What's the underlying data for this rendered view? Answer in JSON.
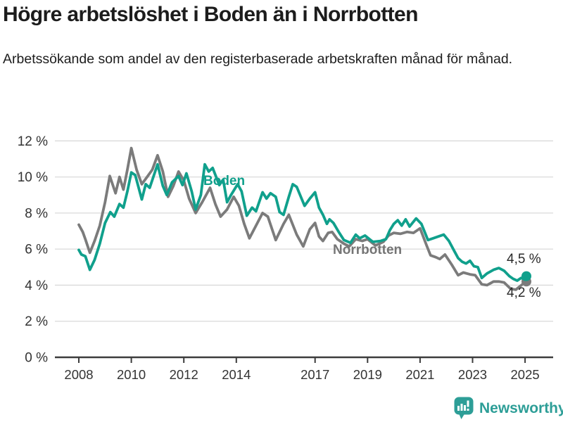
{
  "title": "Högre arbetslöshet i Boden än i Norrbotten",
  "subtitle": "Arbetssökande som andel av den registerbaserade arbetskraften månad för månad.",
  "footer": {
    "brand": "Newsworthy"
  },
  "colors": {
    "accent_teal": "#10a08c",
    "series_gray": "#7b7b7b",
    "logo_teal": "#2d9e97",
    "grid": "#dadada",
    "axis": "#3c3c3c",
    "tick_text": "#333333"
  },
  "chart_data": {
    "type": "line",
    "unit": "%",
    "x_axis": {
      "ticks": [
        2008,
        2010,
        2012,
        2014,
        2017,
        2019,
        2021,
        2023,
        2025
      ],
      "range": [
        2008,
        2025.2
      ]
    },
    "y_axis": {
      "ticks": [
        0,
        2,
        4,
        6,
        8,
        10,
        12
      ],
      "labels": [
        "0 %",
        "2 %",
        "4 %",
        "6 %",
        "8 %",
        "10 %",
        "12 %"
      ],
      "range": [
        0,
        12.5
      ]
    },
    "grid": true,
    "legend_position": "inline-labels",
    "series_labels": {
      "boden": "Boden",
      "norrbotten": "Norrbotten"
    },
    "end_labels": {
      "boden": "4,5 %",
      "norrbotten": "4,2 %"
    },
    "series": [
      {
        "name": "Norrbotten",
        "color": "#7b7b7b",
        "points": [
          [
            2008.0,
            7.35
          ],
          [
            2008.15,
            6.95
          ],
          [
            2008.25,
            6.55
          ],
          [
            2008.42,
            5.8
          ],
          [
            2008.6,
            6.45
          ],
          [
            2008.8,
            7.3
          ],
          [
            2009.0,
            8.6
          ],
          [
            2009.18,
            10.05
          ],
          [
            2009.4,
            9.1
          ],
          [
            2009.55,
            10.0
          ],
          [
            2009.7,
            9.3
          ],
          [
            2009.85,
            10.4
          ],
          [
            2010.0,
            11.6
          ],
          [
            2010.2,
            10.4
          ],
          [
            2010.4,
            9.6
          ],
          [
            2010.6,
            10.0
          ],
          [
            2010.8,
            10.4
          ],
          [
            2011.0,
            11.2
          ],
          [
            2011.2,
            10.3
          ],
          [
            2011.4,
            8.9
          ],
          [
            2011.6,
            9.5
          ],
          [
            2011.8,
            10.3
          ],
          [
            2012.0,
            9.8
          ],
          [
            2012.2,
            8.8
          ],
          [
            2012.45,
            8.0
          ],
          [
            2012.7,
            8.6
          ],
          [
            2013.0,
            9.4
          ],
          [
            2013.2,
            8.5
          ],
          [
            2013.4,
            7.8
          ],
          [
            2013.65,
            8.2
          ],
          [
            2013.9,
            8.9
          ],
          [
            2014.1,
            8.4
          ],
          [
            2014.3,
            7.4
          ],
          [
            2014.5,
            6.6
          ],
          [
            2014.75,
            7.3
          ],
          [
            2015.0,
            8.0
          ],
          [
            2015.2,
            7.8
          ],
          [
            2015.5,
            6.5
          ],
          [
            2015.8,
            7.4
          ],
          [
            2016.0,
            7.9
          ],
          [
            2016.3,
            6.8
          ],
          [
            2016.55,
            6.15
          ],
          [
            2016.8,
            7.1
          ],
          [
            2017.0,
            7.45
          ],
          [
            2017.15,
            6.7
          ],
          [
            2017.3,
            6.45
          ],
          [
            2017.5,
            6.9
          ],
          [
            2017.65,
            6.95
          ],
          [
            2017.85,
            6.55
          ],
          [
            2018.1,
            6.3
          ],
          [
            2018.3,
            6.15
          ],
          [
            2018.55,
            6.55
          ],
          [
            2018.8,
            6.45
          ],
          [
            2019.0,
            6.55
          ],
          [
            2019.3,
            6.2
          ],
          [
            2019.6,
            6.4
          ],
          [
            2019.8,
            6.75
          ],
          [
            2020.0,
            6.9
          ],
          [
            2020.25,
            6.85
          ],
          [
            2020.5,
            6.95
          ],
          [
            2020.75,
            6.9
          ],
          [
            2021.0,
            7.15
          ],
          [
            2021.25,
            6.2
          ],
          [
            2021.4,
            5.65
          ],
          [
            2021.6,
            5.55
          ],
          [
            2021.75,
            5.45
          ],
          [
            2021.95,
            5.7
          ],
          [
            2022.2,
            5.15
          ],
          [
            2022.45,
            4.55
          ],
          [
            2022.65,
            4.7
          ],
          [
            2022.9,
            4.6
          ],
          [
            2023.1,
            4.55
          ],
          [
            2023.35,
            4.05
          ],
          [
            2023.55,
            4.0
          ],
          [
            2023.8,
            4.2
          ],
          [
            2024.0,
            4.2
          ],
          [
            2024.2,
            4.15
          ],
          [
            2024.45,
            3.8
          ],
          [
            2024.65,
            3.75
          ],
          [
            2024.9,
            4.05
          ],
          [
            2025.05,
            4.2
          ]
        ]
      },
      {
        "name": "Boden",
        "color": "#10a08c",
        "points": [
          [
            2008.0,
            5.95
          ],
          [
            2008.1,
            5.7
          ],
          [
            2008.25,
            5.6
          ],
          [
            2008.42,
            4.85
          ],
          [
            2008.6,
            5.4
          ],
          [
            2008.8,
            6.3
          ],
          [
            2009.0,
            7.45
          ],
          [
            2009.2,
            8.05
          ],
          [
            2009.35,
            7.8
          ],
          [
            2009.55,
            8.5
          ],
          [
            2009.7,
            8.3
          ],
          [
            2009.85,
            9.2
          ],
          [
            2010.0,
            10.25
          ],
          [
            2010.15,
            10.1
          ],
          [
            2010.4,
            8.75
          ],
          [
            2010.55,
            9.6
          ],
          [
            2010.7,
            9.4
          ],
          [
            2011.0,
            10.7
          ],
          [
            2011.2,
            9.5
          ],
          [
            2011.35,
            9.0
          ],
          [
            2011.55,
            9.7
          ],
          [
            2011.8,
            10.05
          ],
          [
            2011.95,
            9.55
          ],
          [
            2012.1,
            10.2
          ],
          [
            2012.3,
            9.2
          ],
          [
            2012.45,
            8.2
          ],
          [
            2012.65,
            9.0
          ],
          [
            2012.8,
            10.7
          ],
          [
            2012.95,
            10.3
          ],
          [
            2013.1,
            10.5
          ],
          [
            2013.35,
            9.55
          ],
          [
            2013.5,
            9.85
          ],
          [
            2013.65,
            8.6
          ],
          [
            2013.8,
            9.0
          ],
          [
            2014.05,
            9.6
          ],
          [
            2014.2,
            9.2
          ],
          [
            2014.4,
            7.85
          ],
          [
            2014.6,
            8.3
          ],
          [
            2014.75,
            8.1
          ],
          [
            2015.0,
            9.15
          ],
          [
            2015.15,
            8.8
          ],
          [
            2015.3,
            9.1
          ],
          [
            2015.5,
            8.9
          ],
          [
            2015.65,
            8.05
          ],
          [
            2015.8,
            7.9
          ],
          [
            2016.0,
            8.9
          ],
          [
            2016.15,
            9.6
          ],
          [
            2016.3,
            9.45
          ],
          [
            2016.6,
            8.4
          ],
          [
            2016.8,
            8.8
          ],
          [
            2017.0,
            9.15
          ],
          [
            2017.15,
            8.3
          ],
          [
            2017.3,
            7.9
          ],
          [
            2017.45,
            7.4
          ],
          [
            2017.55,
            7.65
          ],
          [
            2017.7,
            7.45
          ],
          [
            2017.9,
            6.95
          ],
          [
            2018.1,
            6.5
          ],
          [
            2018.35,
            6.35
          ],
          [
            2018.55,
            6.8
          ],
          [
            2018.7,
            6.6
          ],
          [
            2018.9,
            6.75
          ],
          [
            2019.2,
            6.4
          ],
          [
            2019.5,
            6.45
          ],
          [
            2019.7,
            6.55
          ],
          [
            2019.85,
            7.05
          ],
          [
            2020.0,
            7.4
          ],
          [
            2020.15,
            7.6
          ],
          [
            2020.3,
            7.3
          ],
          [
            2020.45,
            7.65
          ],
          [
            2020.6,
            7.25
          ],
          [
            2020.85,
            7.7
          ],
          [
            2021.05,
            7.4
          ],
          [
            2021.3,
            6.5
          ],
          [
            2021.5,
            6.6
          ],
          [
            2021.7,
            6.7
          ],
          [
            2021.9,
            6.8
          ],
          [
            2022.1,
            6.45
          ],
          [
            2022.3,
            5.9
          ],
          [
            2022.45,
            5.5
          ],
          [
            2022.6,
            5.3
          ],
          [
            2022.75,
            5.2
          ],
          [
            2022.9,
            5.35
          ],
          [
            2023.05,
            5.05
          ],
          [
            2023.2,
            5.0
          ],
          [
            2023.35,
            4.4
          ],
          [
            2023.55,
            4.65
          ],
          [
            2023.8,
            4.85
          ],
          [
            2024.0,
            4.95
          ],
          [
            2024.2,
            4.8
          ],
          [
            2024.4,
            4.5
          ],
          [
            2024.55,
            4.35
          ],
          [
            2024.7,
            4.25
          ],
          [
            2024.85,
            4.4
          ],
          [
            2025.0,
            4.3
          ],
          [
            2025.05,
            4.5
          ]
        ]
      }
    ]
  }
}
